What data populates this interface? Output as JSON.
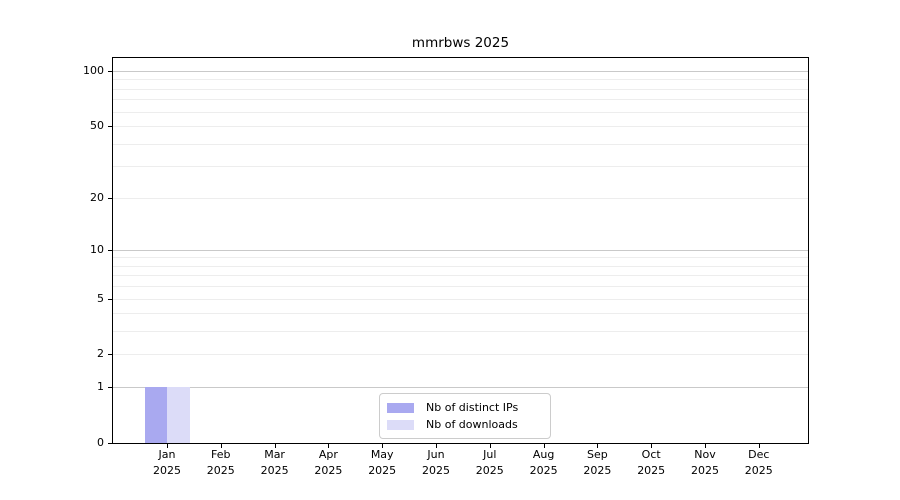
{
  "chart_data": {
    "type": "bar",
    "title": "mmrbws 2025",
    "categories": [
      "Jan",
      "Feb",
      "Mar",
      "Apr",
      "May",
      "Jun",
      "Jul",
      "Aug",
      "Sep",
      "Oct",
      "Nov",
      "Dec"
    ],
    "year_label": "2025",
    "series": [
      {
        "name": "Nb of distinct IPs",
        "color": "#a9a9f0",
        "values": [
          1,
          0,
          0,
          0,
          0,
          0,
          0,
          0,
          0,
          0,
          0,
          0
        ]
      },
      {
        "name": "Nb of downloads",
        "color": "#dcdcf8",
        "values": [
          1,
          0,
          0,
          0,
          0,
          0,
          0,
          0,
          0,
          0,
          0,
          0
        ]
      }
    ],
    "y_axis": {
      "scale": "log1p",
      "ticks": [
        0,
        1,
        2,
        5,
        10,
        20,
        50,
        100
      ],
      "ylim": [
        0,
        117.7
      ],
      "major_gridlines": [
        1,
        10,
        100
      ],
      "minor_gridlines": [
        2,
        3,
        4,
        5,
        6,
        7,
        8,
        9,
        20,
        30,
        40,
        50,
        60,
        70,
        80,
        90
      ]
    },
    "legend": {
      "location": "lower center"
    },
    "grid": true
  },
  "colors": {
    "background": "#ffffff",
    "spine": "#000000",
    "major_grid": "#c9c9c9",
    "minor_grid": "#ededed",
    "text": "#000000",
    "legend_border": "#cccccc"
  }
}
